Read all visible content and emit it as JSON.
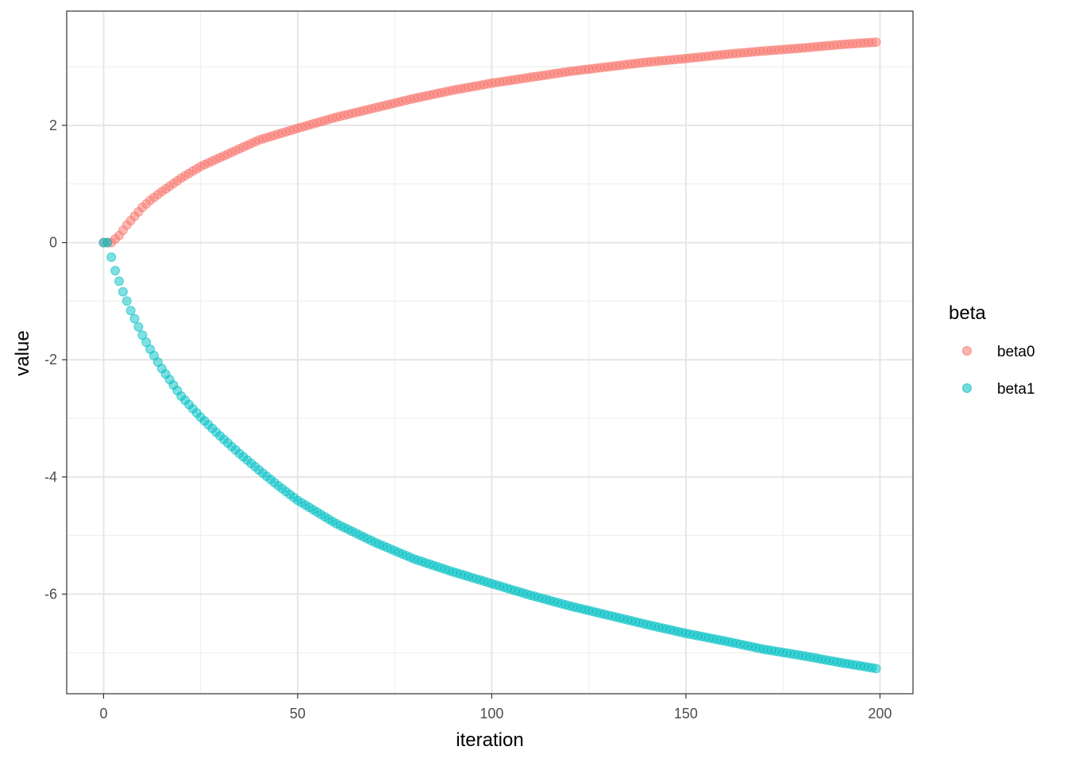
{
  "chart_data": {
    "type": "scatter",
    "title": "",
    "xlabel": "iteration",
    "ylabel": "value",
    "xlim": [
      -9.5,
      208.5
    ],
    "ylim": [
      -7.7,
      3.95
    ],
    "x_ticks_major": [
      0,
      50,
      100,
      150,
      200
    ],
    "x_ticks_minor": [
      25,
      75,
      125,
      175
    ],
    "y_ticks_major": [
      -6,
      -4,
      -2,
      0,
      2
    ],
    "y_ticks_minor": [
      -7,
      -5,
      -3,
      -1,
      1,
      3
    ],
    "x_tick_labels": [
      "0",
      "50",
      "100",
      "150",
      "200"
    ],
    "y_tick_labels": [
      "-6",
      "-4",
      "-2",
      "0",
      "2"
    ],
    "grid": true,
    "legend": {
      "title": "beta",
      "position": "right",
      "entries": [
        "beta0",
        "beta1"
      ]
    },
    "colors": {
      "beta0": "#F8766D",
      "beta1": "#00BFC4"
    },
    "point_opacity": 0.5,
    "x_range": [
      0,
      199
    ],
    "series": [
      {
        "name": "beta0",
        "anchors": [
          [
            0,
            0
          ],
          [
            2,
            0
          ],
          [
            4,
            0.12
          ],
          [
            6,
            0.3
          ],
          [
            8,
            0.45
          ],
          [
            10,
            0.6
          ],
          [
            12,
            0.72
          ],
          [
            15,
            0.87
          ],
          [
            20,
            1.1
          ],
          [
            25,
            1.3
          ],
          [
            30,
            1.45
          ],
          [
            40,
            1.75
          ],
          [
            50,
            1.95
          ],
          [
            60,
            2.14
          ],
          [
            70,
            2.3
          ],
          [
            80,
            2.46
          ],
          [
            90,
            2.6
          ],
          [
            100,
            2.72
          ],
          [
            110,
            2.82
          ],
          [
            120,
            2.92
          ],
          [
            130,
            3.0
          ],
          [
            140,
            3.08
          ],
          [
            150,
            3.14
          ],
          [
            160,
            3.21
          ],
          [
            170,
            3.27
          ],
          [
            180,
            3.32
          ],
          [
            190,
            3.38
          ],
          [
            199,
            3.42
          ]
        ]
      },
      {
        "name": "beta1",
        "anchors": [
          [
            0,
            0
          ],
          [
            1,
            0
          ],
          [
            2,
            -0.25
          ],
          [
            3,
            -0.48
          ],
          [
            4,
            -0.66
          ],
          [
            5,
            -0.84
          ],
          [
            6,
            -1.0
          ],
          [
            7,
            -1.16
          ],
          [
            8,
            -1.3
          ],
          [
            10,
            -1.58
          ],
          [
            12,
            -1.82
          ],
          [
            15,
            -2.15
          ],
          [
            20,
            -2.62
          ],
          [
            25,
            -2.98
          ],
          [
            30,
            -3.3
          ],
          [
            35,
            -3.6
          ],
          [
            40,
            -3.88
          ],
          [
            45,
            -4.15
          ],
          [
            50,
            -4.4
          ],
          [
            60,
            -4.8
          ],
          [
            70,
            -5.12
          ],
          [
            80,
            -5.4
          ],
          [
            90,
            -5.62
          ],
          [
            100,
            -5.82
          ],
          [
            110,
            -6.02
          ],
          [
            120,
            -6.2
          ],
          [
            130,
            -6.36
          ],
          [
            140,
            -6.52
          ],
          [
            150,
            -6.67
          ],
          [
            160,
            -6.8
          ],
          [
            170,
            -6.94
          ],
          [
            180,
            -7.05
          ],
          [
            190,
            -7.17
          ],
          [
            199,
            -7.27
          ]
        ]
      }
    ]
  }
}
